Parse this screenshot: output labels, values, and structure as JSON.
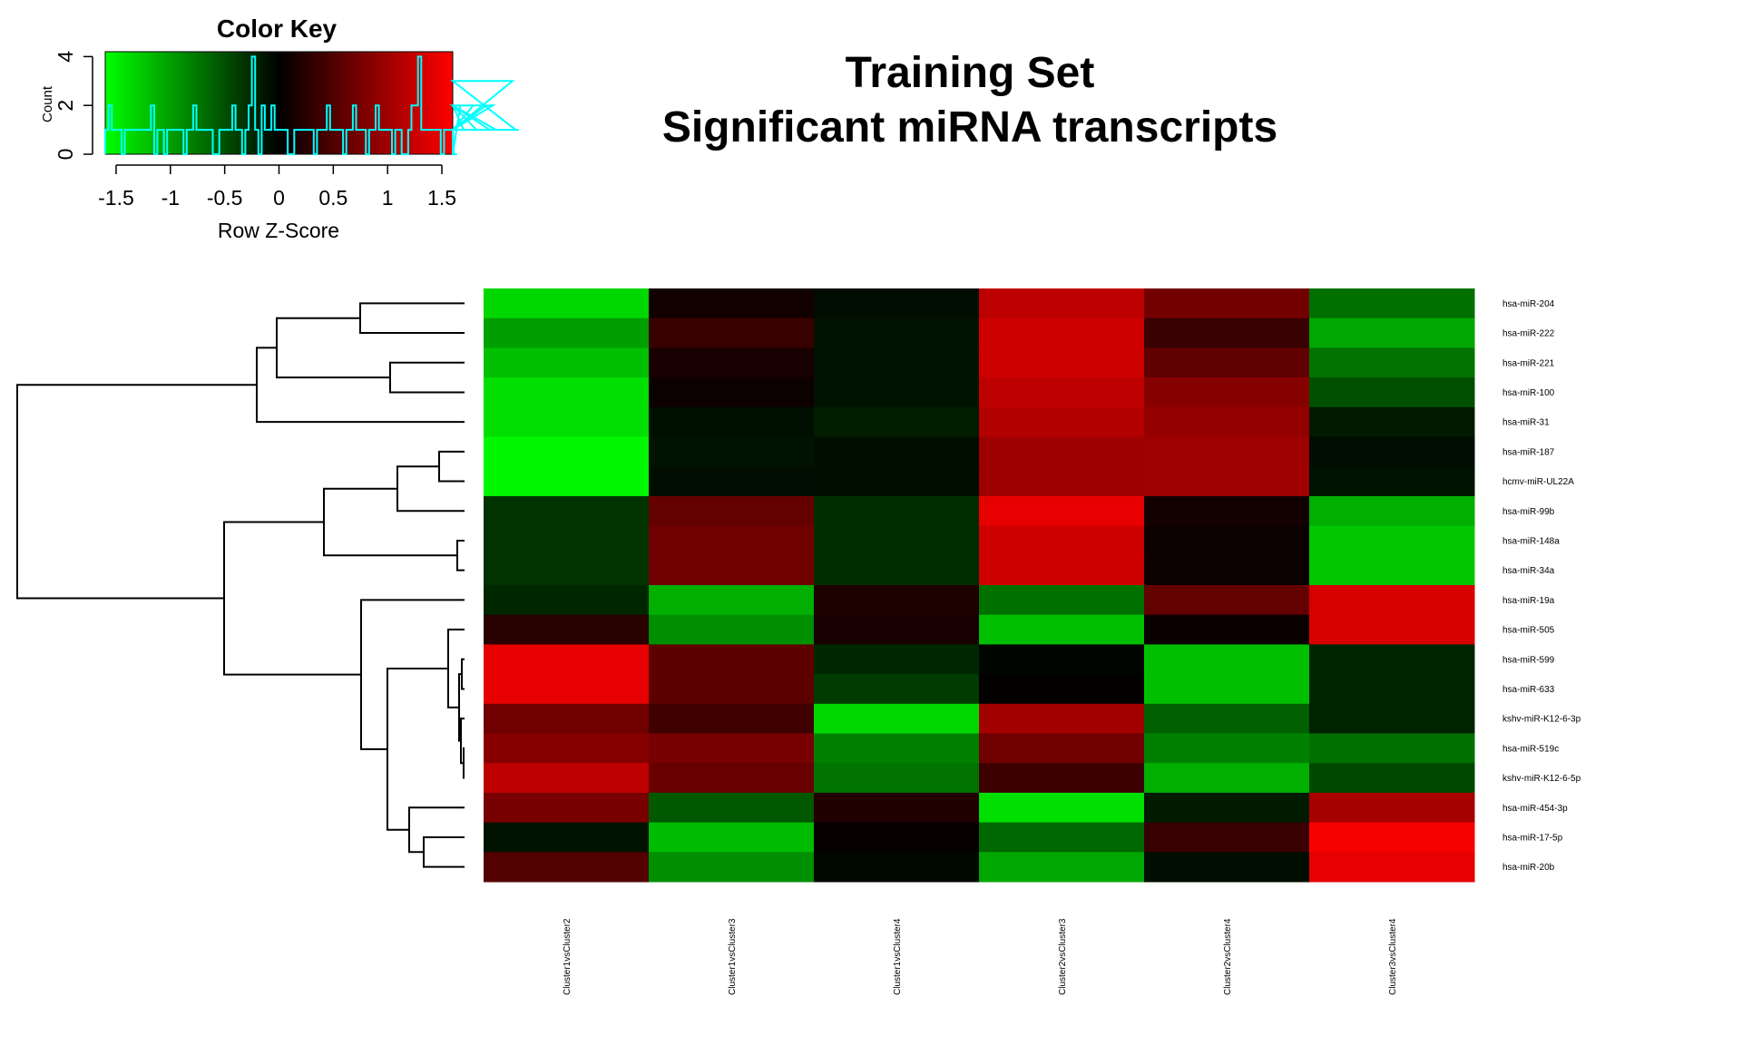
{
  "title": {
    "line1": "Training Set",
    "line2": "Significant miRNA transcripts"
  },
  "color_key": {
    "title": "Color Key",
    "xlabel": "Row Z-Score",
    "ylabel": "Count",
    "x_ticks": [
      "-1.5",
      "-1",
      "-0.5",
      "0",
      "0.5",
      "1",
      "1.5"
    ],
    "x_tick_values": [
      -1.5,
      -1,
      -0.5,
      0,
      0.5,
      1,
      1.5
    ],
    "y_ticks": [
      "0",
      "2",
      "4"
    ],
    "y_tick_values": [
      0,
      2,
      4
    ],
    "xlim": [
      -1.6,
      1.6
    ],
    "ylim": [
      0,
      4.2
    ],
    "colors": {
      "low": "#00ff00",
      "mid": "#000000",
      "high": "#ff0000",
      "histogram": "#00ffff"
    }
  },
  "chart_data": {
    "type": "heatmap",
    "title": "Training Set\nSignificant miRNA transcripts",
    "columns": [
      "Cluster1vsCluster2",
      "Cluster1vsCluster3",
      "Cluster1vsCluster4",
      "Cluster2vsCluster3",
      "Cluster2vsCluster4",
      "Cluster3vsCluster4"
    ],
    "rows": [
      "hsa-miR-204",
      "hsa-miR-222",
      "hsa-miR-221",
      "hsa-miR-100",
      "hsa-miR-31",
      "hsa-miR-187",
      "hcmv-miR-UL22A",
      "hsa-miR-99b",
      "hsa-miR-148a",
      "hsa-miR-34a",
      "hsa-miR-19a",
      "hsa-miR-505",
      "hsa-miR-599",
      "hsa-miR-633",
      "kshv-miR-K12-6-3p",
      "hsa-miR-519c",
      "kshv-miR-K12-6-5p",
      "hsa-miR-454-3p",
      "hsa-miR-17-5p",
      "hsa-miR-20b"
    ],
    "values": [
      [
        -1.35,
        0.12,
        -0.08,
        1.18,
        0.72,
        -0.7
      ],
      [
        -1.0,
        0.36,
        -0.12,
        1.29,
        0.35,
        -1.05
      ],
      [
        -1.2,
        0.15,
        -0.12,
        1.29,
        0.61,
        -0.72
      ],
      [
        -1.4,
        0.08,
        -0.12,
        1.2,
        0.85,
        -0.5
      ],
      [
        -1.4,
        -0.1,
        -0.18,
        1.12,
        0.93,
        -0.17
      ],
      [
        -1.55,
        -0.12,
        -0.09,
        0.98,
        1.0,
        -0.08
      ],
      [
        -1.55,
        -0.08,
        -0.09,
        0.98,
        1.0,
        -0.11
      ],
      [
        -0.32,
        0.62,
        -0.28,
        1.45,
        0.12,
        -1.1
      ],
      [
        -0.32,
        0.7,
        -0.28,
        1.3,
        0.08,
        -1.25
      ],
      [
        -0.32,
        0.7,
        -0.28,
        1.3,
        0.08,
        -1.25
      ],
      [
        -0.25,
        -1.1,
        0.18,
        -0.7,
        0.62,
        1.35
      ],
      [
        0.25,
        -0.9,
        0.15,
        -1.2,
        0.06,
        1.35
      ],
      [
        1.45,
        0.58,
        -0.25,
        -0.03,
        -1.2,
        -0.22
      ],
      [
        1.45,
        0.58,
        -0.37,
        0.02,
        -1.2,
        -0.22
      ],
      [
        0.7,
        0.4,
        -1.35,
        1.02,
        -0.6,
        -0.22
      ],
      [
        0.85,
        0.75,
        -0.8,
        0.7,
        -0.8,
        -0.7
      ],
      [
        1.2,
        0.65,
        -0.72,
        0.38,
        -1.1,
        -0.45
      ],
      [
        0.75,
        -0.55,
        0.2,
        -1.4,
        -0.17,
        1.05
      ],
      [
        -0.12,
        -1.18,
        0.04,
        -0.65,
        0.35,
        1.55
      ],
      [
        0.52,
        -0.9,
        -0.05,
        -1.05,
        -0.08,
        1.45
      ]
    ],
    "zlim": [
      -1.6,
      1.6
    ],
    "color_scale": [
      "#00ff00",
      "#000000",
      "#ff0000"
    ],
    "histogram": {
      "bins_from": -1.6,
      "bin_width": 0.03,
      "counts": [
        1,
        2,
        1,
        1,
        1,
        0,
        1,
        1,
        1,
        1,
        1,
        1,
        1,
        1,
        2,
        0,
        1,
        1,
        0,
        1,
        1,
        1,
        1,
        1,
        0,
        1,
        1,
        2,
        1,
        1,
        1,
        1,
        1,
        0,
        0,
        1,
        1,
        1,
        1,
        2,
        1,
        1,
        0,
        1,
        2,
        4,
        1,
        0,
        2,
        1,
        1,
        2,
        1,
        1,
        1,
        1,
        0,
        0,
        1,
        1,
        1,
        1,
        1,
        1,
        0,
        1,
        1,
        1,
        2,
        1,
        1,
        1,
        1,
        0,
        1,
        1,
        2,
        1,
        1,
        1,
        0,
        1,
        1,
        2,
        1,
        1,
        1,
        1,
        0,
        1,
        1,
        0,
        0,
        1,
        2,
        2,
        4,
        1,
        1,
        1,
        1,
        1,
        1,
        0,
        1,
        1,
        1,
        0,
        0,
        2,
        1,
        1,
        1,
        2,
        1,
        1,
        1,
        2,
        1,
        2,
        1,
        1,
        1,
        1,
        1,
        3,
        1,
        1
      ]
    }
  }
}
